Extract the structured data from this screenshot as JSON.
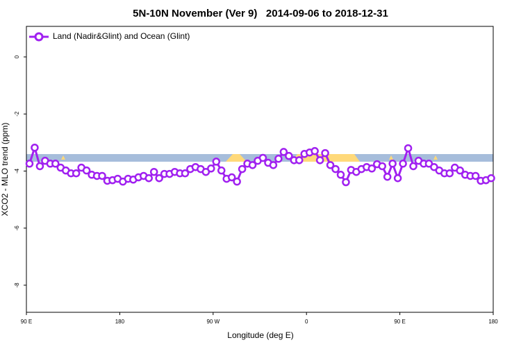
{
  "chart_data": {
    "type": "line",
    "title": "5N-10N November (Ver 9)   2014-09-06 to 2018-12-31",
    "x_label": "Longitude (deg E)",
    "y_label": "XCO2 - MLO trend (ppm)",
    "xlim": [
      90,
      540
    ],
    "ylim": [
      -8.95,
      1.07
    ],
    "xticks": [
      {
        "value": 90,
        "label": "90 E"
      },
      {
        "value": 180,
        "label": "180"
      },
      {
        "value": 270,
        "label": "90 W"
      },
      {
        "value": 360,
        "label": "0"
      },
      {
        "value": 450,
        "label": "90 E"
      },
      {
        "value": 540,
        "label": "180"
      }
    ],
    "yticks": [
      0,
      -2,
      -4,
      -6,
      -8
    ],
    "legend_position": "upper left",
    "x": [
      93,
      98,
      103,
      108,
      113,
      118,
      123,
      128,
      133,
      138,
      143,
      148,
      153,
      158,
      163,
      168,
      173,
      178,
      183,
      188,
      193,
      198,
      203,
      208,
      213,
      218,
      223,
      228,
      233,
      238,
      243,
      248,
      253,
      258,
      263,
      268,
      273,
      278,
      283,
      288,
      293,
      298,
      303,
      308,
      313,
      318,
      323,
      328,
      333,
      338,
      343,
      348,
      353,
      358,
      363,
      368,
      373,
      378,
      383,
      388,
      393,
      398,
      403,
      408,
      413,
      418,
      423,
      428,
      433,
      438,
      443,
      448,
      453,
      458,
      463,
      468,
      473,
      478,
      483,
      488,
      493,
      498,
      503,
      508,
      513,
      518,
      523,
      528,
      533,
      538
    ],
    "series": [
      {
        "name": "Land (Nadir&Glint) and Ocean (Glint)",
        "color": "#a020f0",
        "values": [
          -3.74,
          -3.18,
          -3.83,
          -3.64,
          -3.74,
          -3.74,
          -3.88,
          -3.98,
          -4.08,
          -4.08,
          -3.88,
          -3.98,
          -4.13,
          -4.17,
          -4.17,
          -4.34,
          -4.32,
          -4.27,
          -4.37,
          -4.27,
          -4.3,
          -4.22,
          -4.17,
          -4.25,
          -4.03,
          -4.25,
          -4.1,
          -4.1,
          -4.03,
          -4.08,
          -4.08,
          -3.93,
          -3.86,
          -3.93,
          -4.03,
          -3.91,
          -3.67,
          -3.98,
          -4.27,
          -4.22,
          -4.37,
          -3.93,
          -3.74,
          -3.79,
          -3.64,
          -3.54,
          -3.71,
          -3.79,
          -3.57,
          -3.33,
          -3.47,
          -3.62,
          -3.62,
          -3.4,
          -3.35,
          -3.3,
          -3.62,
          -3.37,
          -3.79,
          -3.93,
          -4.13,
          -4.39,
          -3.96,
          -4.03,
          -3.93,
          -3.86,
          -3.91,
          -3.76,
          -3.83,
          -4.2,
          -3.74,
          -4.25,
          -3.74,
          -3.2,
          -3.83,
          -3.64,
          -3.74,
          -3.74,
          -3.86,
          -3.98,
          -4.08,
          -4.08,
          -3.88,
          -3.98,
          -4.13,
          -4.17,
          -4.17,
          -4.34,
          -4.32,
          -4.25
        ]
      }
    ]
  }
}
